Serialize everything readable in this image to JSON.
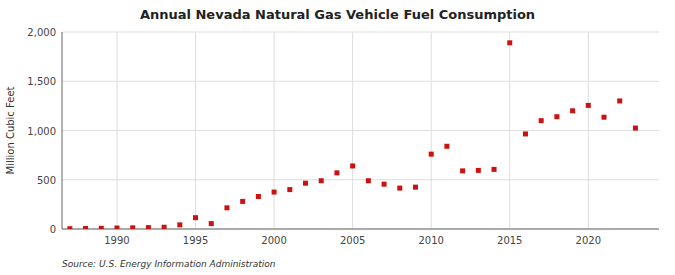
{
  "chart_data": {
    "type": "scatter",
    "title": "Annual Nevada Natural Gas Vehicle Fuel Consumption",
    "ylabel": "Million Cubic Feet",
    "annotations": [
      "Source: U.S. Energy Information Administration"
    ],
    "x": [
      1987,
      1988,
      1989,
      1990,
      1991,
      1992,
      1993,
      1994,
      1995,
      1996,
      1997,
      1998,
      1999,
      2000,
      2001,
      2002,
      2003,
      2004,
      2005,
      2006,
      2007,
      2008,
      2009,
      2010,
      2011,
      2012,
      2013,
      2014,
      2015,
      2016,
      2017,
      2018,
      2019,
      2020,
      2021,
      2022,
      2023
    ],
    "values": [
      3,
      5,
      7,
      10,
      12,
      14,
      18,
      42,
      115,
      55,
      215,
      280,
      330,
      375,
      400,
      465,
      490,
      570,
      640,
      490,
      455,
      415,
      425,
      760,
      840,
      590,
      595,
      605,
      1890,
      965,
      1100,
      1140,
      1200,
      1255,
      1135,
      1300,
      1025
    ],
    "color": "#cc1111",
    "marker": "square",
    "xlim": [
      1986.5,
      2024.5
    ],
    "xticks": [
      1990,
      1995,
      2000,
      2005,
      2010,
      2015,
      2020
    ],
    "ylim": [
      0,
      2000
    ],
    "yticks": [
      0,
      500,
      {
        "value": 1000,
        "label": "1,000"
      },
      {
        "value": 1500,
        "label": "1,500"
      },
      {
        "value": 2000,
        "label": "2,000"
      }
    ],
    "grid": true
  }
}
